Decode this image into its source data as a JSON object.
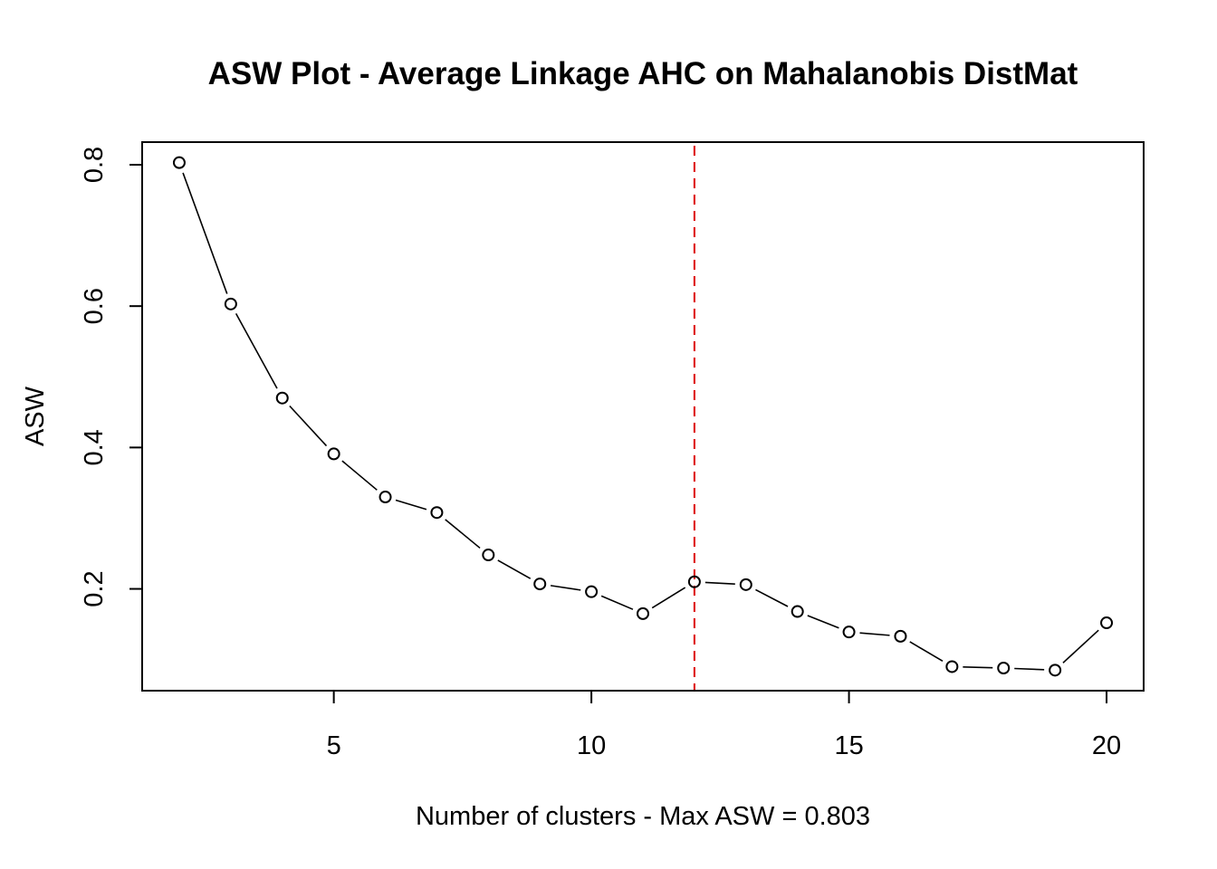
{
  "chart_data": {
    "type": "line",
    "title": "ASW Plot - Average Linkage AHC on Mahalanobis DistMat",
    "xlabel": "Number of clusters   -   Max ASW = 0.803",
    "ylabel": "ASW",
    "x": [
      2,
      3,
      4,
      5,
      6,
      7,
      8,
      9,
      10,
      11,
      12,
      13,
      14,
      15,
      16,
      17,
      18,
      19,
      20
    ],
    "series": [
      {
        "values": [
          0.803,
          0.603,
          0.47,
          0.391,
          0.33,
          0.308,
          0.248,
          0.207,
          0.196,
          0.165,
          0.21,
          0.206,
          0.168,
          0.139,
          0.133,
          0.09,
          0.088,
          0.085,
          0.152
        ]
      }
    ],
    "xlim": [
      1.28,
      20.72
    ],
    "ylim": [
      0.056,
      0.832
    ],
    "xticks": [
      5,
      10,
      15,
      20
    ],
    "yticks": [
      0.2,
      0.4,
      0.6,
      0.8
    ],
    "xtick_labels": [
      "5",
      "10",
      "15",
      "20"
    ],
    "ytick_labels": [
      "0.2",
      "0.4",
      "0.6",
      "0.8"
    ],
    "reference_line": {
      "x": 12,
      "color": "#dd0000",
      "style": "dashed"
    },
    "line_color": "#000000",
    "grid": false,
    "legend": "none"
  }
}
